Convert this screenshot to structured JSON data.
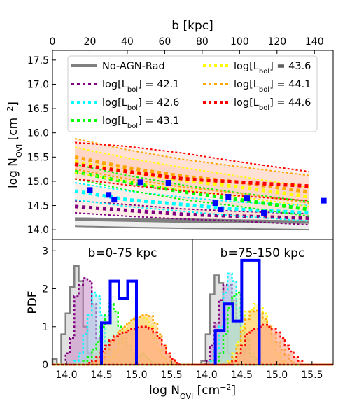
{
  "chart_data": [
    {
      "type": "line",
      "title": "",
      "xlabel": "",
      "ylabel_main": "log N",
      "ylabel_sub": "OVI",
      "ylabel_unit": " [cm",
      "ylabel_sup": "−2",
      "ylabel_close": "]",
      "top_xlabel": "b [kpc]",
      "xlim": [
        0,
        150
      ],
      "ylim": [
        13.8,
        17.7
      ],
      "x_ticks": [
        0,
        20,
        40,
        60,
        80,
        100,
        120,
        140
      ],
      "y_ticks": [
        14.0,
        14.5,
        15.0,
        15.5,
        16.0,
        16.5,
        17.0,
        17.5
      ],
      "y_tick_labels": [
        "14.0",
        "14.5",
        "15.0",
        "15.5",
        "16.0",
        "16.5",
        "17.0",
        "17.5"
      ],
      "grid": false,
      "legend_position": "top",
      "legend_prefix": "log[L",
      "legend_sub": "bol",
      "legend_suffix": "] = ",
      "series": [
        {
          "name": "No-AGN-Rad",
          "color": "#808080",
          "style": "solid",
          "x": [
            12,
            40,
            70,
            100,
            137
          ],
          "y": [
            14.22,
            14.2,
            14.18,
            14.17,
            14.16
          ],
          "band_lo": [
            14.07,
            14.05,
            14.03,
            14.02,
            14.0
          ],
          "band_hi": [
            14.24,
            14.23,
            14.22,
            14.2,
            14.18
          ]
        },
        {
          "name": "42.1",
          "color": "#800080",
          "style": "dotted",
          "x": [
            12,
            40,
            70,
            100,
            137
          ],
          "y": [
            14.48,
            14.4,
            14.32,
            14.28,
            14.24
          ],
          "band_lo": [
            14.35,
            14.28,
            14.22,
            14.18,
            14.1
          ],
          "band_hi": [
            14.6,
            14.52,
            14.43,
            14.38,
            14.33
          ]
        },
        {
          "name": "42.6",
          "color": "#00ffff",
          "style": "dotted",
          "x": [
            12,
            40,
            70,
            100,
            137
          ],
          "y": [
            14.8,
            14.62,
            14.52,
            14.42,
            14.35
          ],
          "band_lo": [
            14.62,
            14.48,
            14.38,
            14.28,
            14.18
          ],
          "band_hi": [
            14.97,
            14.8,
            14.67,
            14.57,
            14.5
          ]
        },
        {
          "name": "43.1",
          "color": "#00ff00",
          "style": "dotted",
          "x": [
            12,
            40,
            70,
            100,
            137
          ],
          "y": [
            15.2,
            14.98,
            14.78,
            14.62,
            14.42
          ],
          "band_lo": [
            15.05,
            14.82,
            14.62,
            14.48,
            14.28
          ],
          "band_hi": [
            15.35,
            15.12,
            14.92,
            14.76,
            14.58
          ]
        },
        {
          "name": "43.6",
          "color": "#ffff00",
          "style": "dotted",
          "x": [
            12,
            40,
            70,
            100,
            137
          ],
          "y": [
            15.4,
            15.2,
            15.02,
            14.88,
            14.68
          ],
          "band_lo": [
            15.18,
            15.0,
            14.82,
            14.68,
            14.48
          ],
          "band_hi": [
            15.7,
            15.48,
            15.28,
            15.1,
            14.88
          ]
        },
        {
          "name": "44.1",
          "color": "#ffa500",
          "style": "dotted",
          "x": [
            12,
            40,
            70,
            100,
            137
          ],
          "y": [
            15.5,
            15.28,
            15.1,
            14.98,
            14.78
          ],
          "band_lo": [
            15.25,
            15.05,
            14.88,
            14.75,
            14.55
          ],
          "band_hi": [
            15.88,
            15.65,
            15.45,
            15.3,
            15.12
          ]
        },
        {
          "name": "44.6",
          "color": "#ff0000",
          "style": "dotted",
          "x": [
            12,
            40,
            70,
            100,
            137
          ],
          "y": [
            15.35,
            15.2,
            15.05,
            14.98,
            14.9
          ],
          "band_lo": [
            15.05,
            14.92,
            14.8,
            14.7,
            14.6
          ],
          "band_hi": [
            15.8,
            15.72,
            15.58,
            15.4,
            15.2
          ]
        }
      ],
      "band_color": "#ffb090",
      "observations": {
        "color": "#0000ff",
        "x": [
          20,
          30,
          33,
          47,
          62,
          87,
          90,
          94,
          104,
          113,
          145
        ],
        "y": [
          14.82,
          14.72,
          14.62,
          14.98,
          14.97,
          14.55,
          14.42,
          14.68,
          14.65,
          14.35,
          14.6
        ]
      }
    },
    {
      "type": "histogram",
      "title": "b=0-75 kpc",
      "xlabel_main": "log N",
      "xlabel_sub": "OVI",
      "xlabel_unit": " [cm",
      "xlabel_sup": "−2",
      "xlabel_close": "]",
      "ylabel": "PDF",
      "xlim": [
        13.8,
        15.8
      ],
      "ylim": [
        0,
        3.3
      ],
      "x_ticks": [
        14.0,
        14.5,
        15.0,
        15.5
      ],
      "x_tick_labels": [
        "14.0",
        "14.5",
        "15.0",
        "15.5"
      ],
      "y_ticks": [
        0,
        1,
        2,
        3
      ],
      "y_tick_labels": [
        "0",
        "1",
        "2",
        "3"
      ],
      "bin_start": 13.8,
      "bin_width": 0.0625,
      "series": [
        {
          "name": "No-AGN-Rad",
          "color": "#808080",
          "fill": "#c8c8c8",
          "values": [
            0.15,
            0,
            0.8,
            1.35,
            2.05,
            2.6,
            2.2,
            1.0,
            0.3,
            0,
            0,
            0,
            0,
            0,
            0,
            0,
            0,
            0,
            0,
            0,
            0,
            0,
            0,
            0,
            0,
            0,
            0,
            0,
            0,
            0,
            0,
            0
          ]
        },
        {
          "name": "42.1",
          "color": "#800080",
          "fill": "#c88cc8",
          "values": [
            0,
            0,
            0,
            0.3,
            0.7,
            1.8,
            2.1,
            2.28,
            2.2,
            1.6,
            0.7,
            0.2,
            0,
            0,
            0,
            0,
            0,
            0,
            0,
            0,
            0,
            0,
            0,
            0,
            0,
            0,
            0,
            0,
            0,
            0,
            0,
            0
          ]
        },
        {
          "name": "42.6",
          "color": "#00ffff",
          "fill": "#aad8ec",
          "values": [
            0,
            0,
            0,
            0,
            0,
            0.1,
            0.3,
            0.8,
            1.3,
            1.9,
            1.8,
            1.3,
            0.6,
            0.2,
            0.05,
            0,
            0,
            0,
            0,
            0,
            0,
            0,
            0,
            0,
            0,
            0,
            0,
            0,
            0,
            0,
            0,
            0
          ]
        },
        {
          "name": "43.1",
          "color": "#00ff00",
          "fill": "#b8eab8",
          "values": [
            0,
            0,
            0,
            0,
            0,
            0,
            0,
            0.1,
            0.2,
            0.4,
            0.6,
            1.0,
            1.3,
            1.6,
            1.4,
            1.0,
            0.7,
            0.5,
            0.3,
            0.2,
            0.3,
            0.2,
            0.1,
            0.05,
            0,
            0,
            0,
            0,
            0,
            0,
            0,
            0
          ]
        },
        {
          "name": "43.6",
          "color": "#ffff00",
          "fill": "#fff08a",
          "values": [
            0,
            0,
            0,
            0,
            0,
            0,
            0,
            0,
            0,
            0,
            0,
            0.05,
            0.1,
            0.2,
            0.4,
            0.6,
            0.9,
            1.1,
            1.2,
            1.25,
            1.3,
            1.2,
            1.0,
            0.7,
            0.4,
            0.2,
            0.05,
            0,
            0,
            0,
            0,
            0
          ]
        },
        {
          "name": "44.1",
          "color": "#ffa500",
          "fill": "#ffcc66",
          "values": [
            0,
            0,
            0,
            0,
            0,
            0,
            0,
            0,
            0,
            0.05,
            0.1,
            0.2,
            0.4,
            0.6,
            0.75,
            0.9,
            1.0,
            1.1,
            1.2,
            1.25,
            1.3,
            1.32,
            1.28,
            1.1,
            0.8,
            0.5,
            0.3,
            0.1,
            0,
            0,
            0,
            0
          ]
        },
        {
          "name": "44.6",
          "color": "#ff0000",
          "fill": "#ff9a80",
          "values": [
            0,
            0,
            0,
            0,
            0,
            0,
            0,
            0,
            0.05,
            0.1,
            0.2,
            0.35,
            0.5,
            0.65,
            0.75,
            0.8,
            0.85,
            0.9,
            0.95,
            0.98,
            1.0,
            1.0,
            0.95,
            0.85,
            0.7,
            0.5,
            0.3,
            0.15,
            0.05,
            0,
            0,
            0
          ]
        }
      ],
      "observations": {
        "name": "obs",
        "color": "#0000ff",
        "edges": [
          14.5,
          14.625,
          14.75,
          14.875,
          15.0
        ],
        "values": [
          1.1,
          2.2,
          1.75,
          2.2
        ]
      }
    },
    {
      "type": "histogram",
      "title": "b=75-150 kpc",
      "xlim": [
        13.8,
        15.8
      ],
      "ylim": [
        0,
        3.3
      ],
      "x_ticks": [
        14.0,
        14.5,
        15.0,
        15.5
      ],
      "x_tick_labels": [
        "14.0",
        "14.5",
        "15.0",
        "15.5"
      ],
      "bin_start": 13.8,
      "bin_width": 0.0625,
      "series": [
        {
          "name": "No-AGN-Rad",
          "color": "#808080",
          "fill": "#c8c8c8",
          "values": [
            0,
            0,
            0.1,
            0.8,
            1.85,
            2.35,
            2.15,
            1.2,
            0.3,
            0,
            0,
            0,
            0,
            0,
            0,
            0,
            0,
            0,
            0,
            0,
            0,
            0,
            0,
            0,
            0,
            0,
            0,
            0,
            0,
            0,
            0,
            0
          ]
        },
        {
          "name": "42.1",
          "color": "#800080",
          "fill": "#c88cc8",
          "values": [
            0,
            0,
            0,
            0.1,
            0.5,
            1.1,
            1.7,
            2.1,
            2.1,
            1.7,
            1.1,
            0.4,
            0.1,
            0,
            0,
            0,
            0,
            0,
            0,
            0,
            0,
            0,
            0,
            0,
            0,
            0,
            0,
            0,
            0,
            0,
            0,
            0
          ]
        },
        {
          "name": "42.6",
          "color": "#00ffff",
          "fill": "#aad8ec",
          "values": [
            0,
            0,
            0,
            0,
            0.1,
            0.4,
            1.0,
            1.9,
            2.4,
            2.2,
            1.5,
            0.8,
            0.3,
            0.1,
            0,
            0,
            0,
            0,
            0,
            0,
            0,
            0,
            0,
            0,
            0,
            0,
            0,
            0,
            0,
            0,
            0,
            0
          ]
        },
        {
          "name": "43.1",
          "color": "#00ff00",
          "fill": "#b8eab8",
          "values": [
            0,
            0,
            0,
            0,
            0,
            0.1,
            0.3,
            0.8,
            1.5,
            1.8,
            1.9,
            1.3,
            0.7,
            0.3,
            0.15,
            0.05,
            0,
            0,
            0,
            0,
            0,
            0,
            0,
            0,
            0,
            0,
            0,
            0,
            0,
            0,
            0,
            0
          ]
        },
        {
          "name": "43.6",
          "color": "#ffff00",
          "fill": "#fff08a",
          "values": [
            0,
            0,
            0,
            0,
            0,
            0,
            0,
            0,
            0.1,
            0.3,
            0.6,
            1.0,
            1.4,
            1.45,
            1.6,
            1.5,
            1.35,
            1.0,
            0.6,
            0.3,
            0.1,
            0,
            0,
            0,
            0,
            0,
            0,
            0,
            0,
            0,
            0,
            0
          ]
        },
        {
          "name": "44.1",
          "color": "#ffa500",
          "fill": "#ffcc66",
          "values": [
            0,
            0,
            0,
            0,
            0,
            0,
            0,
            0,
            0.05,
            0.2,
            0.5,
            0.9,
            1.2,
            1.4,
            1.42,
            1.35,
            1.2,
            1.0,
            0.8,
            0.6,
            0.4,
            0.25,
            0.1,
            0,
            0,
            0,
            0,
            0,
            0,
            0,
            0,
            0
          ]
        },
        {
          "name": "44.6",
          "color": "#ff0000",
          "fill": "#ff9a80",
          "values": [
            0,
            0,
            0,
            0,
            0,
            0,
            0,
            0,
            0,
            0.1,
            0.3,
            0.5,
            0.8,
            0.9,
            0.95,
            1.0,
            1.05,
            1.0,
            0.95,
            0.85,
            0.7,
            0.5,
            0.35,
            0.2,
            0.1,
            0,
            0,
            0,
            0,
            0,
            0,
            0
          ]
        }
      ],
      "observations": {
        "name": "obs",
        "color": "#0000ff",
        "edges": [
          14.125,
          14.25,
          14.375,
          14.5,
          14.75
        ],
        "values": [
          0.9,
          1.6,
          1.15,
          2.75
        ]
      }
    }
  ],
  "legend_labels": {
    "noagn": "No-AGN-Rad",
    "l421": "42.1",
    "l426": "42.6",
    "l431": "43.1",
    "l436": "43.6",
    "l441": "44.1",
    "l446": "44.6"
  }
}
